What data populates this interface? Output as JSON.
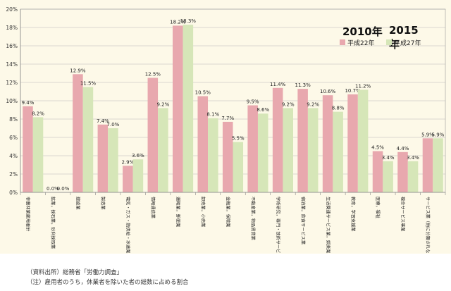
{
  "chart_data": {
    "type": "bar",
    "y_unit": "%",
    "ylim": [
      0,
      20
    ],
    "yticks": [
      "0%",
      "2%",
      "4%",
      "6%",
      "8%",
      "10%",
      "12%",
      "14%",
      "16%",
      "18%",
      "20%"
    ],
    "grid": true,
    "legend_position": "top-right",
    "categories": [
      "非農林業雇用者計",
      "鉱業，採石業，砂利採取業",
      "建設業",
      "製造業",
      "電気・ガス・熱供給・水道業",
      "情報通信業",
      "運輸業，郵便業",
      "卸売業，小売業",
      "金融業，保険業",
      "不動産業，物品賃貸業",
      "学術研究，専門・技術サービス業",
      "宿泊業，飲食サービス業",
      "生活関連サービス業，娯楽業",
      "教育，学習支援業",
      "医療，福祉",
      "複合サービス事業",
      "サービス業（他に分類されないもの）"
    ],
    "series": [
      {
        "name": "2010年",
        "name_sub": "平成22年",
        "color": "#e8a8ae",
        "values": [
          9.4,
          0.0,
          12.9,
          7.4,
          2.9,
          12.5,
          18.2,
          10.5,
          7.7,
          9.5,
          11.4,
          11.3,
          10.6,
          10.7,
          4.5,
          4.4,
          5.9
        ],
        "labels": [
          "9.4%",
          "0.0%",
          "12.9%",
          "7.4%",
          "2.9%",
          "12.5%",
          "18.2%",
          "10.5%",
          "7.7%",
          "9.5%",
          "11.4%",
          "11.3%",
          "10.6%",
          "10.7%",
          "4.5%",
          "4.4%",
          "5.9%"
        ]
      },
      {
        "name": "2015年",
        "name_sub": "平成27年",
        "color": "#d6e6b8",
        "values": [
          8.2,
          0.0,
          11.5,
          7.0,
          3.6,
          9.2,
          18.3,
          8.1,
          5.5,
          8.6,
          9.2,
          9.2,
          8.8,
          11.2,
          3.4,
          3.4,
          5.9
        ],
        "labels": [
          "8.2%",
          "0.0%",
          "11.5%",
          "7.0%",
          "3.6%",
          "9.2%",
          "18.3%",
          "8.1%",
          "5.5%",
          "8.6%",
          "9.2%",
          "9.2%",
          "8.8%",
          "11.2%",
          "3.4%",
          "3.4%",
          "5.9%"
        ]
      }
    ]
  },
  "notes": [
    "（資料出所）総務省「労働力調査」",
    "（注）雇用者のうち，休業者を除いた者の総数に占める割合"
  ]
}
